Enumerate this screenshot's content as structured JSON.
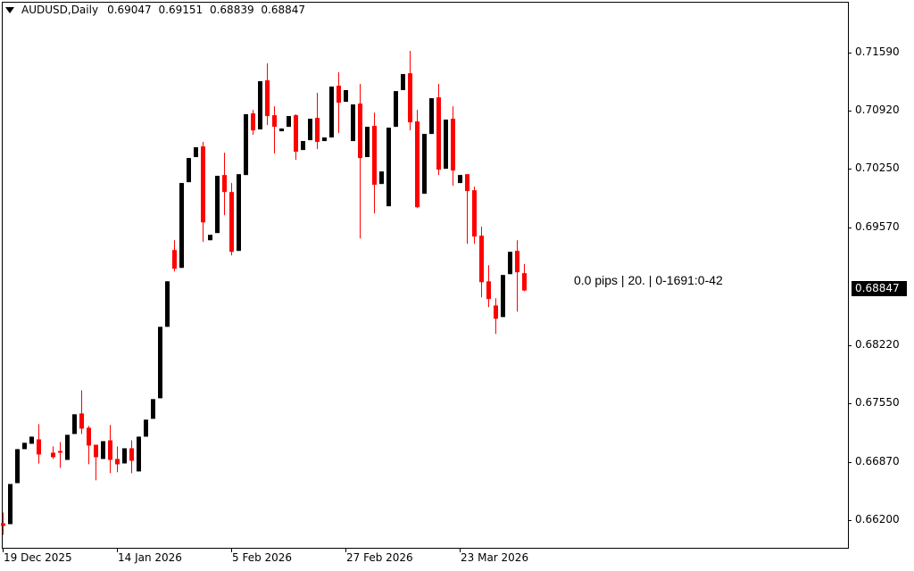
{
  "header": {
    "symbol": "AUDUSD,Daily",
    "open": "0.69047",
    "high": "0.69151",
    "low": "0.68839",
    "close": "0.68847",
    "menu_icon": "triangle-down-icon"
  },
  "annotation": "0.0 pips | 20. | 0-1691:0-42",
  "current_price_label": "0.68847",
  "colors": {
    "bull": "#000000",
    "bear": "#ff0000",
    "background": "#ffffff",
    "price_label_bg": "#000000"
  },
  "chart_data": {
    "type": "candlestick",
    "symbol": "AUDUSD",
    "timeframe": "Daily",
    "ylim": [
      0.65879,
      0.72167
    ],
    "y_ticks": [
      "0.71590",
      "0.70920",
      "0.70250",
      "0.69570",
      "0.68220",
      "0.67550",
      "0.66870",
      "0.66200"
    ],
    "x_ticks": [
      {
        "label": "19 Dec 2025",
        "bar": 0
      },
      {
        "label": "14 Jan 2026",
        "bar": 16
      },
      {
        "label": "5 Feb 2026",
        "bar": 32
      },
      {
        "label": "27 Feb 2026",
        "bar": 48
      },
      {
        "label": "23 Mar 2026",
        "bar": 64
      }
    ],
    "ohlc": [
      [
        0.66162,
        0.66286,
        0.66028,
        0.66131
      ],
      [
        0.66152,
        0.66615,
        0.66152,
        0.66615
      ],
      [
        0.66625,
        0.67017,
        0.66625,
        0.67017
      ],
      [
        0.67017,
        0.6709,
        0.67017,
        0.6709
      ],
      [
        0.67079,
        0.67161,
        0.67079,
        0.67161
      ],
      [
        0.6713,
        0.67305,
        0.66852,
        0.66955
      ],
      null,
      [
        0.66976,
        0.67048,
        0.66904,
        0.66924
      ],
      [
        0.66996,
        0.67099,
        0.66801,
        0.66976
      ],
      [
        0.66893,
        0.67182,
        0.66893,
        0.67182
      ],
      [
        0.67192,
        0.67419,
        0.67192,
        0.67419
      ],
      [
        0.67429,
        0.67697,
        0.67192,
        0.67254
      ],
      [
        0.67264,
        0.67285,
        0.66842,
        0.67058
      ],
      [
        0.67068,
        0.67068,
        0.66657,
        0.66924
      ],
      [
        0.66904,
        0.67109,
        0.66904,
        0.67109
      ],
      [
        0.67119,
        0.67295,
        0.66739,
        0.66893
      ],
      [
        0.66904,
        0.67048,
        0.66751,
        0.66842
      ],
      [
        0.66852,
        0.67027,
        0.66852,
        0.67027
      ],
      [
        0.67027,
        0.67119,
        0.66739,
        0.66883
      ],
      [
        0.6676,
        0.67161,
        0.6676,
        0.67161
      ],
      [
        0.67161,
        0.67357,
        0.67161,
        0.67357
      ],
      [
        0.67367,
        0.67594,
        0.67367,
        0.67594
      ],
      [
        0.67604,
        0.68428,
        0.67604,
        0.68428
      ],
      [
        0.68428,
        0.68953,
        0.68428,
        0.68953
      ],
      [
        0.69314,
        0.69427,
        0.69067,
        0.69098
      ],
      [
        0.69108,
        0.70087,
        0.69108,
        0.70087
      ],
      [
        0.70097,
        0.70375,
        0.70097,
        0.70375
      ],
      [
        0.70386,
        0.70499,
        0.70386,
        0.70499
      ],
      [
        0.70509,
        0.70561,
        0.69407,
        0.69633
      ],
      [
        0.69427,
        0.69489,
        0.69427,
        0.69489
      ],
      [
        0.6951,
        0.70169,
        0.6951,
        0.70169
      ],
      [
        0.70179,
        0.70437,
        0.69715,
        0.69983
      ],
      [
        0.69983,
        0.70087,
        0.69252,
        0.69293
      ],
      [
        0.69304,
        0.70189,
        0.69304,
        0.70189
      ],
      [
        0.70179,
        0.7088,
        0.70179,
        0.7088
      ],
      [
        0.7089,
        0.70931,
        0.70643,
        0.70694
      ],
      [
        0.70705,
        0.71261,
        0.70705,
        0.71261
      ],
      [
        0.71271,
        0.71467,
        0.70756,
        0.70859
      ],
      [
        0.70869,
        0.70972,
        0.70427,
        0.70735
      ],
      [
        0.70684,
        0.70715,
        0.70684,
        0.70715
      ],
      [
        0.70735,
        0.70859,
        0.70735,
        0.70859
      ],
      [
        0.70869,
        0.7088,
        0.70355,
        0.70448
      ],
      [
        0.70468,
        0.70571,
        0.70468,
        0.70571
      ],
      [
        0.70581,
        0.70828,
        0.70581,
        0.70828
      ],
      [
        0.70838,
        0.71127,
        0.70478,
        0.70561
      ],
      [
        0.70571,
        0.70612,
        0.70571,
        0.70612
      ],
      [
        0.70612,
        0.71199,
        0.70612,
        0.71199
      ],
      [
        0.71209,
        0.71364,
        0.70663,
        0.71013
      ],
      [
        0.71024,
        0.71158,
        0.71024,
        0.71158
      ],
      [
        0.70571,
        0.70993,
        0.70571,
        0.70993
      ],
      [
        0.71003,
        0.7123,
        0.69448,
        0.70375
      ],
      [
        0.70386,
        0.70735,
        0.70386,
        0.70735
      ],
      [
        0.70746,
        0.709,
        0.69736,
        0.70066
      ],
      [
        0.70076,
        0.7022,
        0.70076,
        0.7022
      ],
      [
        0.69819,
        0.70725,
        0.69819,
        0.70725
      ],
      [
        0.70735,
        0.71147,
        0.70735,
        0.71147
      ],
      [
        0.71158,
        0.71343,
        0.71158,
        0.71343
      ],
      [
        0.71353,
        0.71611,
        0.70694,
        0.70787
      ],
      [
        0.70797,
        0.70931,
        0.69798,
        0.69808
      ],
      [
        0.69963,
        0.70653,
        0.69963,
        0.70653
      ],
      [
        0.70653,
        0.71065,
        0.70653,
        0.71065
      ],
      [
        0.71075,
        0.7123,
        0.70179,
        0.70241
      ],
      [
        0.70251,
        0.70818,
        0.70251,
        0.70818
      ],
      [
        0.70828,
        0.70972,
        0.70056,
        0.70231
      ],
      [
        0.70087,
        0.70179,
        0.70087,
        0.70179
      ],
      [
        0.70189,
        0.70189,
        0.69386,
        0.69994
      ],
      [
        0.70004,
        0.70045,
        0.69386,
        0.69469
      ],
      [
        0.69479,
        0.69582,
        0.68768,
        0.68943
      ],
      [
        0.68953,
        0.69139,
        0.68654,
        0.68748
      ],
      [
        0.68674,
        0.68758,
        0.68346,
        0.68521
      ],
      [
        0.68541,
        0.69026,
        0.68541,
        0.69026
      ],
      [
        0.69036,
        0.69293,
        0.69036,
        0.69293
      ],
      [
        0.69304,
        0.69427,
        0.68603,
        0.69057
      ],
      [
        0.69047,
        0.69151,
        0.68839,
        0.68847
      ]
    ]
  }
}
